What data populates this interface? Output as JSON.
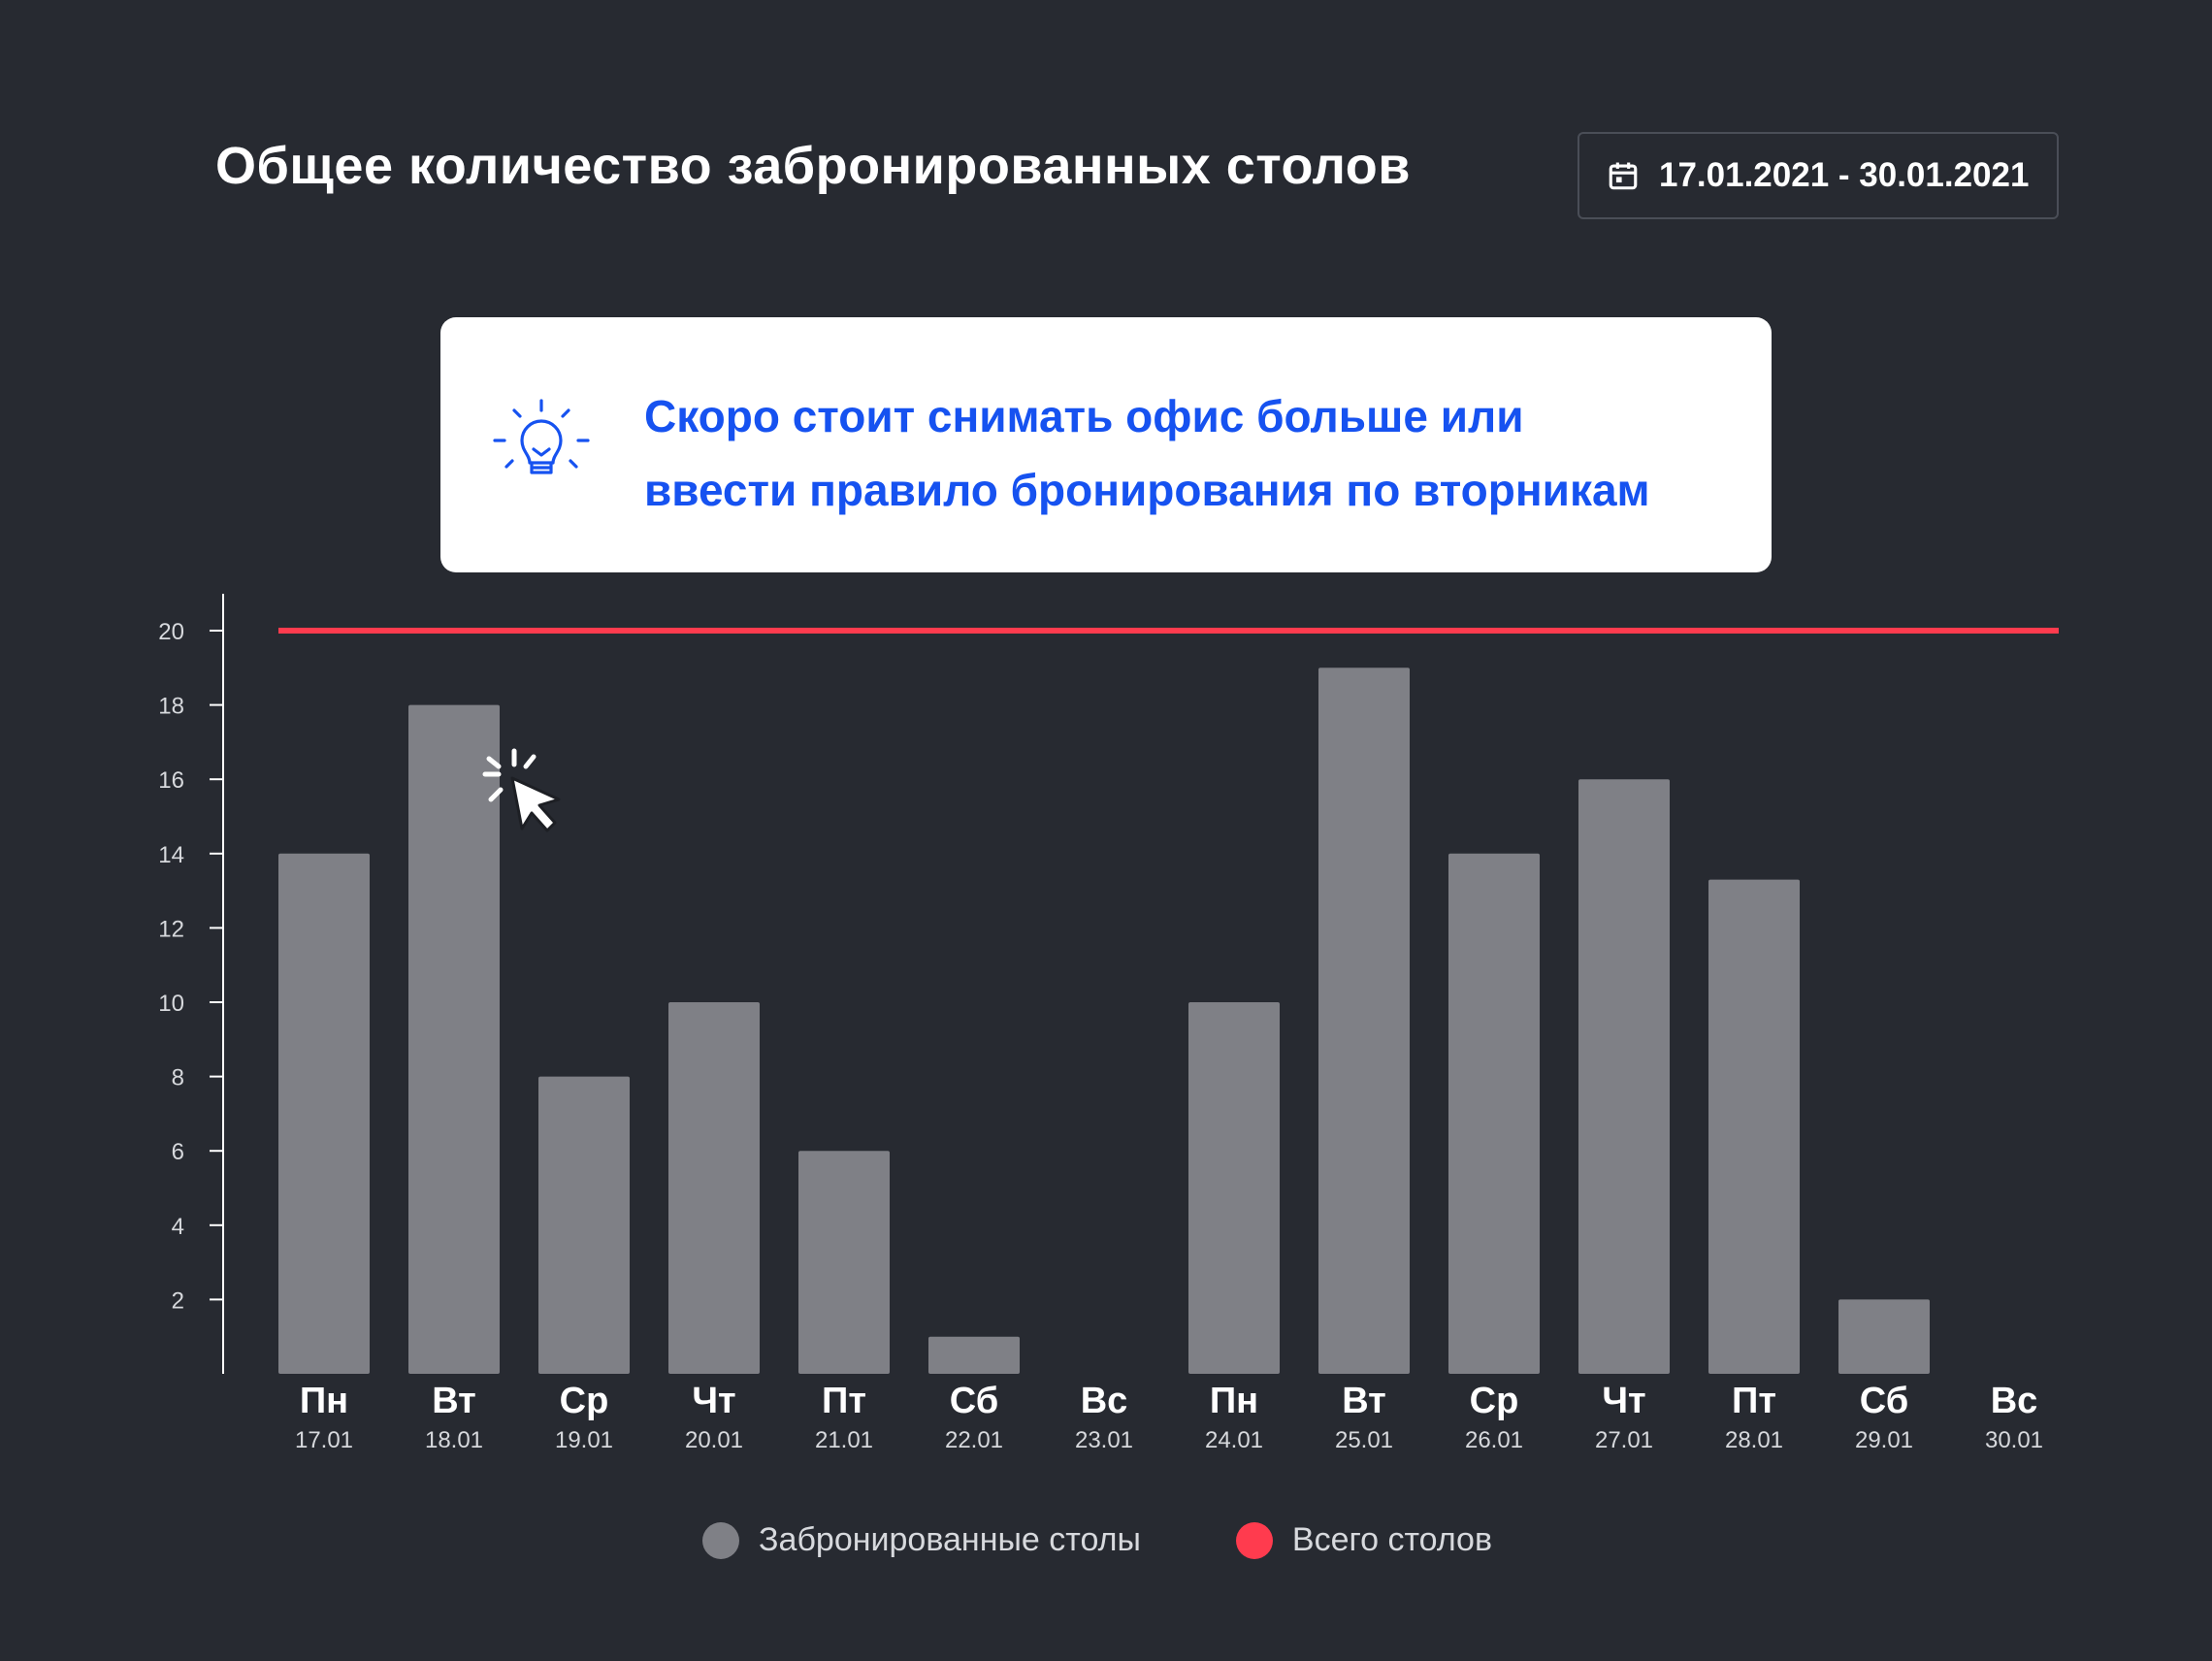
{
  "title": "Общее количество забронированных столов",
  "date_range": {
    "label": "17.01.2021 - 30.01.2021",
    "icon": "calendar-icon"
  },
  "insight": {
    "icon": "lightbulb-icon",
    "line1": "Скоро стоит снимать офис больше или",
    "line2": "ввести правило бронирования по вторникам",
    "color": "#1652f0"
  },
  "legend": {
    "booked_label": "Забронированные столы",
    "total_label": "Всего столов"
  },
  "colors": {
    "background": "#272a31",
    "bar": "#7f8086",
    "total_line": "#ff3b4e",
    "axis": "#ffffff",
    "tick_text": "#d7d9dd"
  },
  "chart_data": {
    "type": "bar",
    "title": "Общее количество забронированных столов",
    "categories": [
      "Пн",
      "Вт",
      "Ср",
      "Чт",
      "Пт",
      "Сб",
      "Вс",
      "Пн",
      "Вт",
      "Ср",
      "Чт",
      "Пт",
      "Сб",
      "Вс"
    ],
    "dates": [
      "17.01",
      "18.01",
      "19.01",
      "20.01",
      "21.01",
      "22.01",
      "23.01",
      "24.01",
      "25.01",
      "26.01",
      "27.01",
      "28.01",
      "29.01",
      "30.01"
    ],
    "series": [
      {
        "name": "Забронированные столы",
        "values": [
          14,
          18,
          8,
          10,
          6,
          1,
          0,
          10,
          19,
          14,
          16,
          13.3,
          2,
          0
        ]
      },
      {
        "name": "Всего столов",
        "type": "line",
        "values": [
          20,
          20,
          20,
          20,
          20,
          20,
          20,
          20,
          20,
          20,
          20,
          20,
          20,
          20
        ]
      }
    ],
    "yticks": [
      2,
      4,
      6,
      8,
      10,
      12,
      14,
      16,
      18,
      20
    ],
    "ylim": [
      0,
      21
    ],
    "grid": false,
    "legend_position": "bottom-center"
  }
}
